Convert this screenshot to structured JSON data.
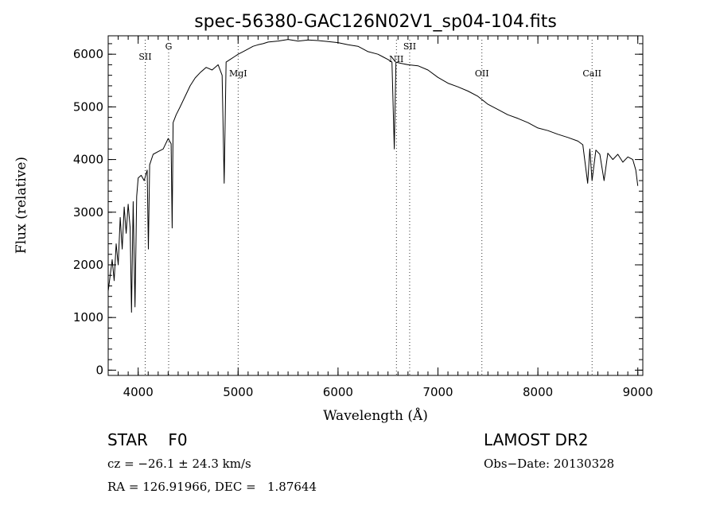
{
  "chart_data": {
    "type": "line",
    "title": "spec-56380-GAC126N02V1_sp04-104.fits",
    "xlabel": "Wavelength (Å)",
    "ylabel": "Flux (relative)",
    "xlim": [
      3700,
      9050
    ],
    "ylim": [
      -100,
      6350
    ],
    "x_ticks": [
      4000,
      5000,
      6000,
      7000,
      8000,
      9000
    ],
    "y_ticks": [
      0,
      1000,
      2000,
      3000,
      4000,
      5000,
      6000
    ],
    "grid": false,
    "series": [
      {
        "x": [
          3700,
          3720,
          3740,
          3760,
          3780,
          3800,
          3820,
          3840,
          3860,
          3880,
          3900,
          3920,
          3933,
          3950,
          3968,
          3985,
          4000,
          4030,
          4060,
          4090,
          4102,
          4115,
          4150,
          4200,
          4250,
          4300,
          4330,
          4340,
          4350,
          4380,
          4420,
          4470,
          4520,
          4570,
          4620,
          4680,
          4740,
          4800,
          4840,
          4861,
          4880,
          4920,
          4960,
          5000,
          5050,
          5100,
          5150,
          5200,
          5250,
          5300,
          5400,
          5500,
          5600,
          5700,
          5800,
          5900,
          6000,
          6100,
          6200,
          6300,
          6400,
          6450,
          6500,
          6540,
          6563,
          6580,
          6620,
          6700,
          6800,
          6900,
          7000,
          7100,
          7200,
          7300,
          7400,
          7500,
          7600,
          7700,
          7800,
          7900,
          8000,
          8100,
          8200,
          8300,
          8400,
          8450,
          8498,
          8520,
          8542,
          8580,
          8620,
          8662,
          8700,
          8750,
          8800,
          8850,
          8900,
          8950,
          8980,
          9000
        ],
        "y": [
          1500,
          1800,
          2100,
          1700,
          2400,
          2000,
          2900,
          2300,
          3100,
          2600,
          3150,
          2700,
          1100,
          3200,
          1200,
          3300,
          3650,
          3700,
          3600,
          3800,
          2300,
          3900,
          4100,
          4150,
          4200,
          4400,
          4300,
          2700,
          4700,
          4850,
          5000,
          5200,
          5400,
          5550,
          5650,
          5750,
          5700,
          5800,
          5600,
          3550,
          5850,
          5900,
          5950,
          6000,
          6050,
          6100,
          6150,
          6180,
          6200,
          6230,
          6250,
          6280,
          6250,
          6270,
          6260,
          6240,
          6220,
          6180,
          6150,
          6050,
          6000,
          5950,
          5900,
          5850,
          4200,
          5850,
          5830,
          5800,
          5780,
          5700,
          5560,
          5450,
          5380,
          5300,
          5200,
          5050,
          4950,
          4850,
          4780,
          4700,
          4600,
          4550,
          4480,
          4420,
          4350,
          4280,
          3550,
          4200,
          3600,
          4180,
          4100,
          3600,
          4120,
          4000,
          4100,
          3950,
          4050,
          4000,
          3800,
          3500
        ]
      }
    ],
    "line_markers": [
      {
        "label": "SII",
        "x": 4070
      },
      {
        "label": "G",
        "x": 4305
      },
      {
        "label": "MgI",
        "x": 5000
      },
      {
        "label": "NII",
        "x": 6584
      },
      {
        "label": "SII",
        "x": 6717
      },
      {
        "label": "OII",
        "x": 7440
      },
      {
        "label": "CaII",
        "x": 8542
      }
    ]
  },
  "info": {
    "class_line": "STAR    F0",
    "cz_line": "cz = −26.1 ± 24.3 km/s",
    "radec_line": "RA = 126.91966, DEC =   1.87644",
    "survey": "LAMOST DR2",
    "obs_date": "Obs−Date: 20130328"
  }
}
